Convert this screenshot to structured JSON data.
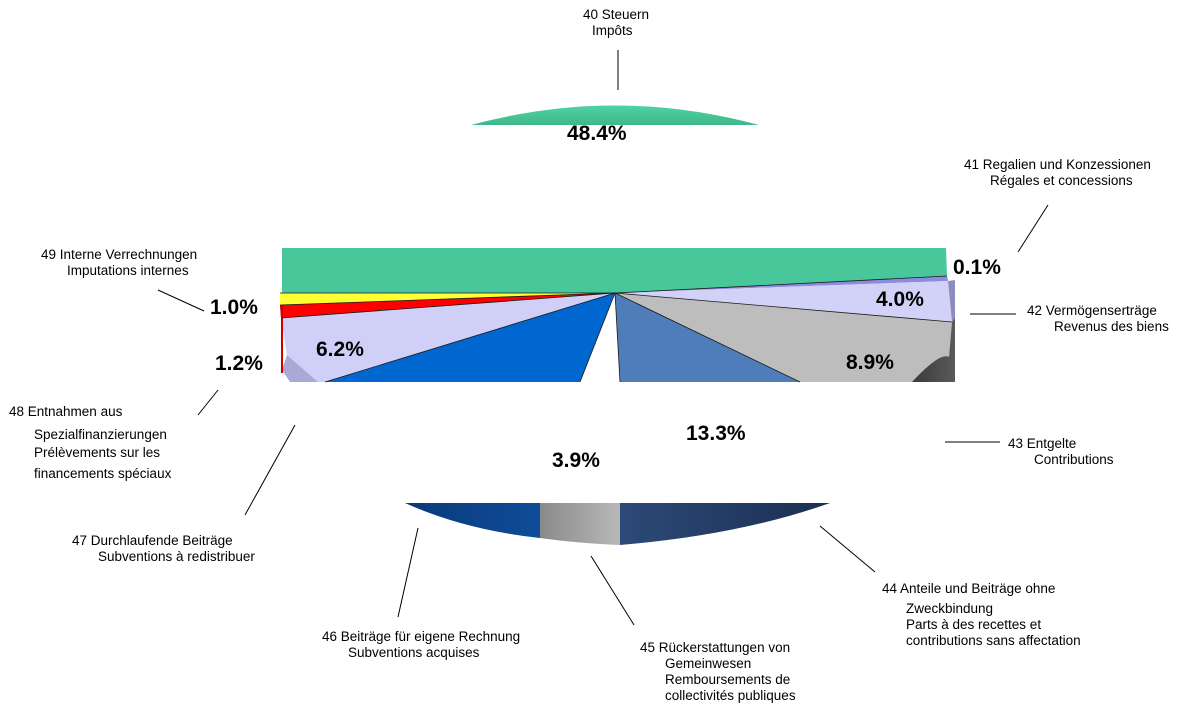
{
  "chart_data": {
    "type": "pie",
    "title": "",
    "slices": [
      {
        "code": "40",
        "label_de": "Steuern",
        "label_fr": "Impôts",
        "value": 48.4,
        "value_label": "48.4%",
        "color": "#48C89A"
      },
      {
        "code": "41",
        "label_de": "Regalien und Konzessionen",
        "label_fr": "Régales et concessions",
        "value": 0.1,
        "value_label": "0.1%",
        "color": "#8B8BE0"
      },
      {
        "code": "42",
        "label_de": "Vermögenserträge",
        "label_fr": "Revenus des biens",
        "value": 4.0,
        "value_label": "4.0%",
        "color": "#D2D2F8"
      },
      {
        "code": "43",
        "label_de": "Entgelte",
        "label_fr": "Contributions",
        "value": 8.9,
        "value_label": "8.9%",
        "color": "#BDBDBD"
      },
      {
        "code": "44",
        "label_de": "Anteile und Beiträge ohne Zweckbindung",
        "label_fr": "Parts à des recettes et contributions sans affectation",
        "value": 13.3,
        "value_label": "13.3%",
        "color": "#4F7DBA"
      },
      {
        "code": "45",
        "label_de": "Rückerstattungen von Gemeinwesen",
        "label_fr": "Remboursements de collectivités publiques",
        "value": 3.9,
        "value_label": "3.9%",
        "color": "#FFFFFF"
      },
      {
        "code": "46",
        "label_de": "Beiträge für eigene Rechnung",
        "label_fr": "Subventions acquises",
        "value": 12.0,
        "value_label": "",
        "color": "#0066D0"
      },
      {
        "code": "47",
        "label_de": "Durchlaufende Beiträge",
        "label_fr": "Subventions à redistribuer",
        "value": 6.2,
        "value_label": "6.2%",
        "color": "#CFCFF8"
      },
      {
        "code": "48",
        "label_de": "Entnahmen aus Spezialfinanzierungen",
        "label_fr": "Prélèvements sur les financements spéciaux",
        "value": 1.2,
        "value_label": "1.2%",
        "color": "#FF0000"
      },
      {
        "code": "49",
        "label_de": "Interne Verrechnungen",
        "label_fr": "Imputations internes",
        "value": 1.0,
        "value_label": "1.0%",
        "color": "#FFFF33"
      }
    ],
    "labels": {
      "s40": [
        "40 Steuern",
        "Impôts"
      ],
      "s41": [
        "41 Regalien und Konzessionen",
        "Régales et concessions"
      ],
      "s42": [
        "42 Vermögenserträge",
        "Revenus des biens"
      ],
      "s43": [
        "43 Entgelte",
        "Contributions"
      ],
      "s44": [
        "44 Anteile und Beiträge ohne",
        "Zweckbindung",
        "Parts à des recettes et",
        "contributions sans affectation"
      ],
      "s45": [
        "45 Rückerstattungen von",
        "Gemeinwesen",
        "Remboursements de",
        "collectivités publiques"
      ],
      "s46": [
        "46 Beiträge für eigene Rechnung",
        "Subventions acquises"
      ],
      "s47": [
        "47 Durchlaufende Beiträge",
        "Subventions à redistribuer"
      ],
      "s48": [
        "48 Entnahmen aus",
        "Spezialfinanzierungen",
        "Prélèvements sur les",
        "financements spéciaux"
      ],
      "s49": [
        "49 Interne Verrechnungen",
        "Imputations internes"
      ]
    },
    "legend": "none",
    "grid": false
  }
}
